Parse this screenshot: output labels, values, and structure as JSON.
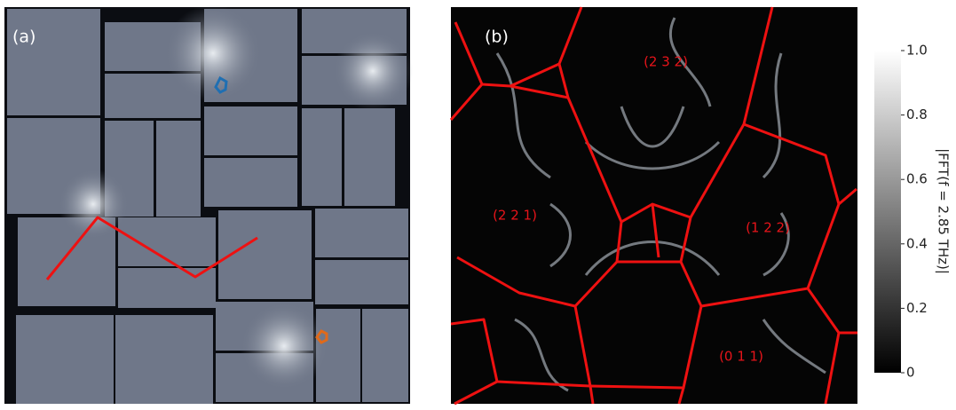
{
  "panels": [
    {
      "label": "(a)"
    },
    {
      "label": "(b)",
      "regions": [
        "(2 3 2)",
        "(2 2 1)",
        "(1 2 2)",
        "(0 1 1)"
      ]
    }
  ],
  "colorbar": {
    "label": "|FFT(f = 2.85 THz)|",
    "range": [
      0,
      1
    ],
    "ticks": [
      0,
      0.2,
      0.4,
      0.6,
      0.8,
      {
        "value": 1,
        "label": "1.0"
      }
    ]
  }
}
